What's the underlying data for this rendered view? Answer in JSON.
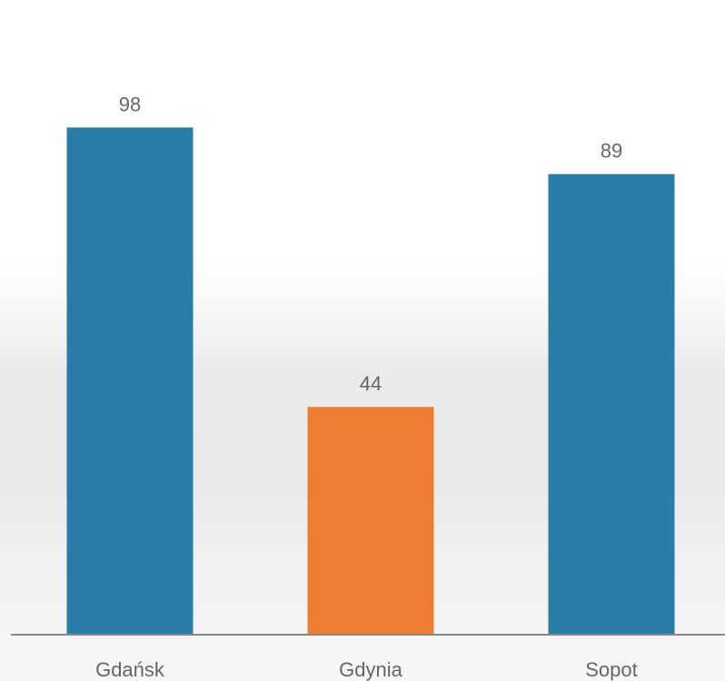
{
  "chart_data": {
    "type": "bar",
    "title": "",
    "xlabel": "",
    "ylabel": "",
    "categories": [
      "Gdańsk",
      "Gdynia",
      "Sopot"
    ],
    "values": [
      98,
      44,
      89
    ],
    "bar_colors": [
      "#2a7ca8",
      "#ed7d31",
      "#2a7ca8"
    ],
    "ylim": [
      0,
      100
    ],
    "grid": false,
    "data_labels": true,
    "legend": "none"
  },
  "colors": {
    "bar_primary": "#2a7ca8",
    "bar_highlight": "#ed7d31",
    "axis": "#888888",
    "label_text": "#666666"
  }
}
